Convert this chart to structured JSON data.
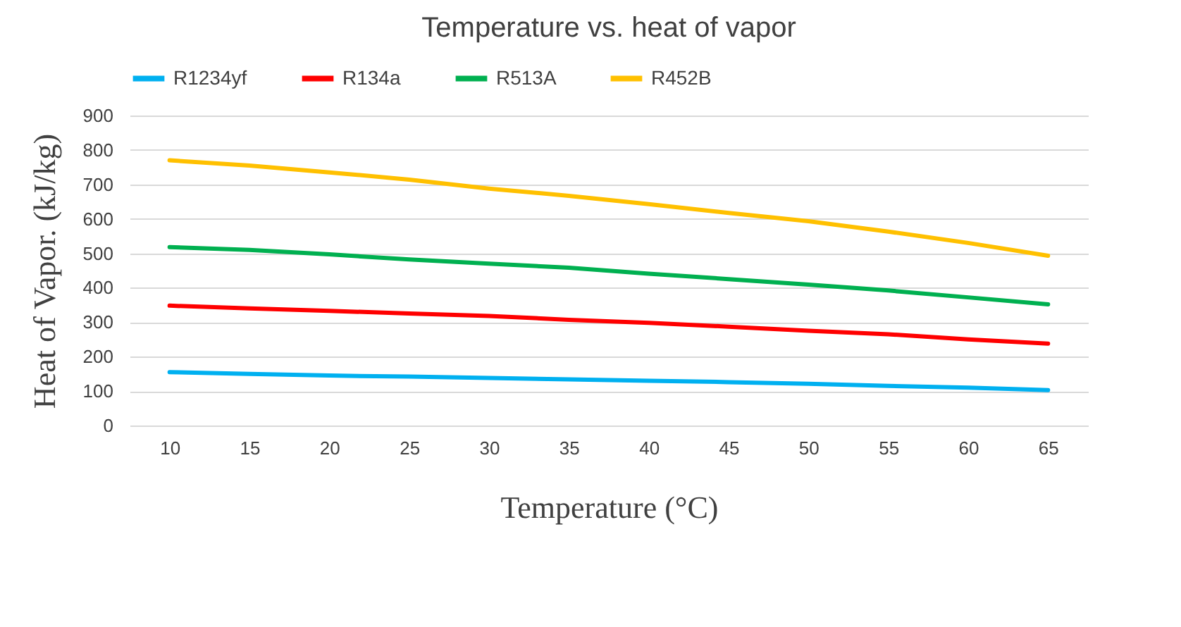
{
  "chart_data": {
    "type": "line",
    "title": "Temperature vs. heat of vapor",
    "xlabel": "Temperature (°C)",
    "ylabel": "Heat of Vapor. (kJ/kg)",
    "categories": [
      "10",
      "15",
      "20",
      "25",
      "30",
      "35",
      "40",
      "45",
      "50",
      "55",
      "60",
      "65"
    ],
    "series": [
      {
        "name": "R1234yf",
        "color": "#00b0f0",
        "values": [
          155,
          150,
          145,
          142,
          138,
          134,
          130,
          126,
          121,
          115,
          110,
          103
        ]
      },
      {
        "name": "R134a",
        "color": "#ff0000",
        "values": [
          348,
          340,
          333,
          325,
          318,
          307,
          298,
          287,
          275,
          265,
          250,
          238
        ]
      },
      {
        "name": "R513A",
        "color": "#00b050",
        "values": [
          518,
          510,
          497,
          482,
          470,
          458,
          441,
          425,
          409,
          392,
          372,
          352
        ]
      },
      {
        "name": "R452B",
        "color": "#ffc000",
        "values": [
          770,
          755,
          735,
          714,
          688,
          667,
          643,
          617,
          593,
          563,
          530,
          493
        ]
      }
    ],
    "ylim": [
      0,
      900
    ],
    "yticks": [
      0,
      100,
      200,
      300,
      400,
      500,
      600,
      700,
      800,
      900
    ],
    "grid": "y",
    "legend": "top",
    "marker": "none",
    "line_style": "solid"
  }
}
